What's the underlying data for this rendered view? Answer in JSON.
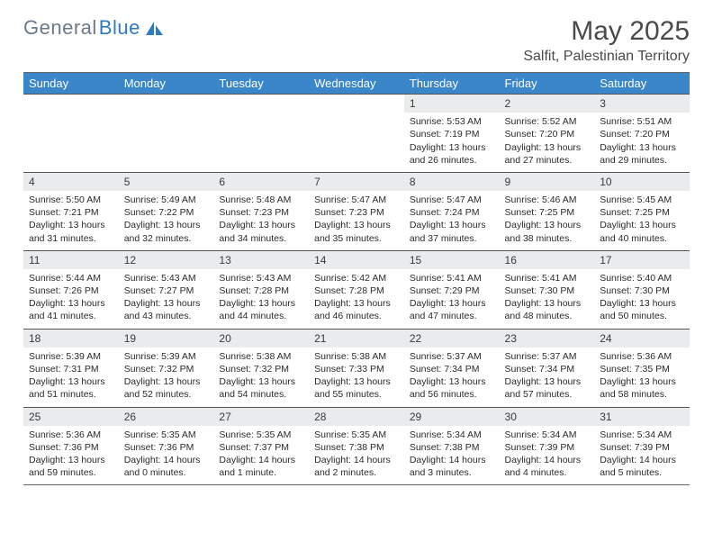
{
  "logo": {
    "text_gray": "General",
    "text_blue": "Blue"
  },
  "title": "May 2025",
  "location": "Salfit, Palestinian Territory",
  "colors": {
    "header_bg": "#3a86c8",
    "header_text": "#ffffff",
    "daynum_bg": "#e9ebed",
    "border": "#555555",
    "logo_gray": "#6b7a8a",
    "logo_blue": "#2f7bc4",
    "body_text": "#2a2a2a",
    "title_text": "#4a4a4a",
    "background": "#ffffff"
  },
  "typography": {
    "title_fontsize": 30,
    "location_fontsize": 16,
    "header_fontsize": 13,
    "daynum_fontsize": 12,
    "cell_fontsize": 10.5
  },
  "day_headers": [
    "Sunday",
    "Monday",
    "Tuesday",
    "Wednesday",
    "Thursday",
    "Friday",
    "Saturday"
  ],
  "weeks": [
    [
      null,
      null,
      null,
      null,
      {
        "n": "1",
        "sunrise": "Sunrise: 5:53 AM",
        "sunset": "Sunset: 7:19 PM",
        "daylight": "Daylight: 13 hours and 26 minutes."
      },
      {
        "n": "2",
        "sunrise": "Sunrise: 5:52 AM",
        "sunset": "Sunset: 7:20 PM",
        "daylight": "Daylight: 13 hours and 27 minutes."
      },
      {
        "n": "3",
        "sunrise": "Sunrise: 5:51 AM",
        "sunset": "Sunset: 7:20 PM",
        "daylight": "Daylight: 13 hours and 29 minutes."
      }
    ],
    [
      {
        "n": "4",
        "sunrise": "Sunrise: 5:50 AM",
        "sunset": "Sunset: 7:21 PM",
        "daylight": "Daylight: 13 hours and 31 minutes."
      },
      {
        "n": "5",
        "sunrise": "Sunrise: 5:49 AM",
        "sunset": "Sunset: 7:22 PM",
        "daylight": "Daylight: 13 hours and 32 minutes."
      },
      {
        "n": "6",
        "sunrise": "Sunrise: 5:48 AM",
        "sunset": "Sunset: 7:23 PM",
        "daylight": "Daylight: 13 hours and 34 minutes."
      },
      {
        "n": "7",
        "sunrise": "Sunrise: 5:47 AM",
        "sunset": "Sunset: 7:23 PM",
        "daylight": "Daylight: 13 hours and 35 minutes."
      },
      {
        "n": "8",
        "sunrise": "Sunrise: 5:47 AM",
        "sunset": "Sunset: 7:24 PM",
        "daylight": "Daylight: 13 hours and 37 minutes."
      },
      {
        "n": "9",
        "sunrise": "Sunrise: 5:46 AM",
        "sunset": "Sunset: 7:25 PM",
        "daylight": "Daylight: 13 hours and 38 minutes."
      },
      {
        "n": "10",
        "sunrise": "Sunrise: 5:45 AM",
        "sunset": "Sunset: 7:25 PM",
        "daylight": "Daylight: 13 hours and 40 minutes."
      }
    ],
    [
      {
        "n": "11",
        "sunrise": "Sunrise: 5:44 AM",
        "sunset": "Sunset: 7:26 PM",
        "daylight": "Daylight: 13 hours and 41 minutes."
      },
      {
        "n": "12",
        "sunrise": "Sunrise: 5:43 AM",
        "sunset": "Sunset: 7:27 PM",
        "daylight": "Daylight: 13 hours and 43 minutes."
      },
      {
        "n": "13",
        "sunrise": "Sunrise: 5:43 AM",
        "sunset": "Sunset: 7:28 PM",
        "daylight": "Daylight: 13 hours and 44 minutes."
      },
      {
        "n": "14",
        "sunrise": "Sunrise: 5:42 AM",
        "sunset": "Sunset: 7:28 PM",
        "daylight": "Daylight: 13 hours and 46 minutes."
      },
      {
        "n": "15",
        "sunrise": "Sunrise: 5:41 AM",
        "sunset": "Sunset: 7:29 PM",
        "daylight": "Daylight: 13 hours and 47 minutes."
      },
      {
        "n": "16",
        "sunrise": "Sunrise: 5:41 AM",
        "sunset": "Sunset: 7:30 PM",
        "daylight": "Daylight: 13 hours and 48 minutes."
      },
      {
        "n": "17",
        "sunrise": "Sunrise: 5:40 AM",
        "sunset": "Sunset: 7:30 PM",
        "daylight": "Daylight: 13 hours and 50 minutes."
      }
    ],
    [
      {
        "n": "18",
        "sunrise": "Sunrise: 5:39 AM",
        "sunset": "Sunset: 7:31 PM",
        "daylight": "Daylight: 13 hours and 51 minutes."
      },
      {
        "n": "19",
        "sunrise": "Sunrise: 5:39 AM",
        "sunset": "Sunset: 7:32 PM",
        "daylight": "Daylight: 13 hours and 52 minutes."
      },
      {
        "n": "20",
        "sunrise": "Sunrise: 5:38 AM",
        "sunset": "Sunset: 7:32 PM",
        "daylight": "Daylight: 13 hours and 54 minutes."
      },
      {
        "n": "21",
        "sunrise": "Sunrise: 5:38 AM",
        "sunset": "Sunset: 7:33 PM",
        "daylight": "Daylight: 13 hours and 55 minutes."
      },
      {
        "n": "22",
        "sunrise": "Sunrise: 5:37 AM",
        "sunset": "Sunset: 7:34 PM",
        "daylight": "Daylight: 13 hours and 56 minutes."
      },
      {
        "n": "23",
        "sunrise": "Sunrise: 5:37 AM",
        "sunset": "Sunset: 7:34 PM",
        "daylight": "Daylight: 13 hours and 57 minutes."
      },
      {
        "n": "24",
        "sunrise": "Sunrise: 5:36 AM",
        "sunset": "Sunset: 7:35 PM",
        "daylight": "Daylight: 13 hours and 58 minutes."
      }
    ],
    [
      {
        "n": "25",
        "sunrise": "Sunrise: 5:36 AM",
        "sunset": "Sunset: 7:36 PM",
        "daylight": "Daylight: 13 hours and 59 minutes."
      },
      {
        "n": "26",
        "sunrise": "Sunrise: 5:35 AM",
        "sunset": "Sunset: 7:36 PM",
        "daylight": "Daylight: 14 hours and 0 minutes."
      },
      {
        "n": "27",
        "sunrise": "Sunrise: 5:35 AM",
        "sunset": "Sunset: 7:37 PM",
        "daylight": "Daylight: 14 hours and 1 minute."
      },
      {
        "n": "28",
        "sunrise": "Sunrise: 5:35 AM",
        "sunset": "Sunset: 7:38 PM",
        "daylight": "Daylight: 14 hours and 2 minutes."
      },
      {
        "n": "29",
        "sunrise": "Sunrise: 5:34 AM",
        "sunset": "Sunset: 7:38 PM",
        "daylight": "Daylight: 14 hours and 3 minutes."
      },
      {
        "n": "30",
        "sunrise": "Sunrise: 5:34 AM",
        "sunset": "Sunset: 7:39 PM",
        "daylight": "Daylight: 14 hours and 4 minutes."
      },
      {
        "n": "31",
        "sunrise": "Sunrise: 5:34 AM",
        "sunset": "Sunset: 7:39 PM",
        "daylight": "Daylight: 14 hours and 5 minutes."
      }
    ]
  ]
}
